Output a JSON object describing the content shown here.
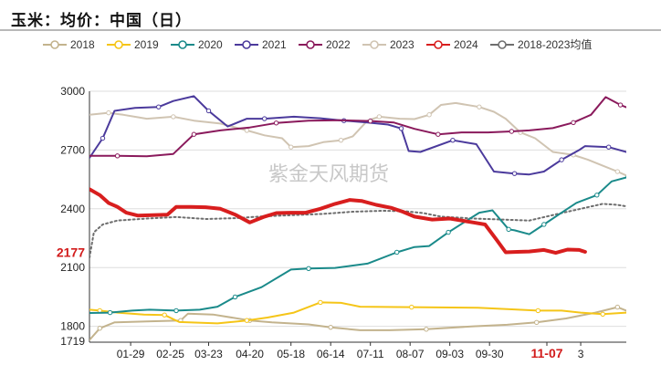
{
  "chart_data": {
    "type": "line",
    "title": "玉米：均价：中国（日）",
    "watermark": "紫金天风期货",
    "ylim": [
      1719,
      3000
    ],
    "yticks": [
      1800,
      2100,
      2400,
      2700,
      3000
    ],
    "ymin_label": "1719",
    "callout_left": "2177",
    "callout_bottom": "11-07",
    "x_tick_labels": [
      "01-29",
      "02-25",
      "03-23",
      "04-20",
      "05-18",
      "06-14",
      "07-11",
      "08-07",
      "09-03",
      "09-30",
      "11-07",
      "3"
    ],
    "x_tick_pos": [
      29,
      56,
      82,
      110,
      138,
      165,
      192,
      219,
      246,
      273,
      312,
      335
    ],
    "xlim": [
      1,
      366
    ],
    "series": [
      {
        "name": "2018",
        "color": "#c3b38d",
        "width": 2,
        "dash": false,
        "points": [
          [
            1,
            1730
          ],
          [
            8,
            1790
          ],
          [
            18,
            1820
          ],
          [
            40,
            1825
          ],
          [
            63,
            1830
          ],
          [
            68,
            1865
          ],
          [
            85,
            1860
          ],
          [
            110,
            1830
          ],
          [
            125,
            1820
          ],
          [
            150,
            1810
          ],
          [
            165,
            1795
          ],
          [
            185,
            1780
          ],
          [
            205,
            1780
          ],
          [
            230,
            1785
          ],
          [
            262,
            1800
          ],
          [
            285,
            1808
          ],
          [
            305,
            1820
          ],
          [
            325,
            1840
          ],
          [
            345,
            1870
          ],
          [
            360,
            1898
          ],
          [
            366,
            1880
          ]
        ]
      },
      {
        "name": "2019",
        "color": "#f5c518",
        "width": 2,
        "dash": false,
        "points": [
          [
            1,
            1885
          ],
          [
            8,
            1880
          ],
          [
            20,
            1870
          ],
          [
            38,
            1860
          ],
          [
            52,
            1858
          ],
          [
            62,
            1822
          ],
          [
            88,
            1815
          ],
          [
            108,
            1830
          ],
          [
            122,
            1845
          ],
          [
            140,
            1870
          ],
          [
            158,
            1922
          ],
          [
            172,
            1920
          ],
          [
            185,
            1900
          ],
          [
            220,
            1898
          ],
          [
            265,
            1895
          ],
          [
            285,
            1888
          ],
          [
            306,
            1880
          ],
          [
            322,
            1880
          ],
          [
            335,
            1870
          ],
          [
            350,
            1862
          ],
          [
            366,
            1870
          ]
        ]
      },
      {
        "name": "2020",
        "color": "#1a8a8a",
        "width": 2,
        "dash": false,
        "points": [
          [
            1,
            1868
          ],
          [
            15,
            1870
          ],
          [
            30,
            1880
          ],
          [
            42,
            1885
          ],
          [
            60,
            1880
          ],
          [
            76,
            1885
          ],
          [
            88,
            1900
          ],
          [
            100,
            1950
          ],
          [
            118,
            2000
          ],
          [
            138,
            2090
          ],
          [
            150,
            2095
          ],
          [
            168,
            2098
          ],
          [
            190,
            2120
          ],
          [
            210,
            2178
          ],
          [
            222,
            2205
          ],
          [
            232,
            2210
          ],
          [
            245,
            2280
          ],
          [
            266,
            2380
          ],
          [
            275,
            2392
          ],
          [
            286,
            2295
          ],
          [
            290,
            2290
          ],
          [
            300,
            2270
          ],
          [
            310,
            2320
          ],
          [
            320,
            2370
          ],
          [
            332,
            2430
          ],
          [
            346,
            2470
          ],
          [
            356,
            2540
          ],
          [
            366,
            2560
          ],
          [
            370,
            2620
          ]
        ]
      },
      {
        "name": "2021",
        "color": "#4b3a9c",
        "width": 2,
        "dash": false,
        "points": [
          [
            1,
            2660
          ],
          [
            10,
            2760
          ],
          [
            18,
            2900
          ],
          [
            32,
            2915
          ],
          [
            48,
            2920
          ],
          [
            58,
            2950
          ],
          [
            72,
            2975
          ],
          [
            82,
            2900
          ],
          [
            95,
            2820
          ],
          [
            108,
            2860
          ],
          [
            120,
            2860
          ],
          [
            140,
            2870
          ],
          [
            158,
            2862
          ],
          [
            174,
            2850
          ],
          [
            190,
            2840
          ],
          [
            204,
            2830
          ],
          [
            213,
            2810
          ],
          [
            218,
            2695
          ],
          [
            226,
            2690
          ],
          [
            248,
            2750
          ],
          [
            264,
            2730
          ],
          [
            276,
            2590
          ],
          [
            290,
            2580
          ],
          [
            300,
            2575
          ],
          [
            310,
            2590
          ],
          [
            322,
            2650
          ],
          [
            334,
            2700
          ],
          [
            338,
            2720
          ],
          [
            354,
            2715
          ],
          [
            366,
            2690
          ],
          [
            372,
            2675
          ]
        ]
      },
      {
        "name": "2022",
        "color": "#8a1a5c",
        "width": 2,
        "dash": false,
        "points": [
          [
            1,
            2670
          ],
          [
            20,
            2670
          ],
          [
            40,
            2668
          ],
          [
            58,
            2680
          ],
          [
            72,
            2780
          ],
          [
            90,
            2800
          ],
          [
            110,
            2815
          ],
          [
            128,
            2838
          ],
          [
            150,
            2850
          ],
          [
            172,
            2852
          ],
          [
            192,
            2848
          ],
          [
            208,
            2840
          ],
          [
            222,
            2808
          ],
          [
            238,
            2780
          ],
          [
            254,
            2790
          ],
          [
            272,
            2790
          ],
          [
            288,
            2795
          ],
          [
            300,
            2800
          ],
          [
            316,
            2812
          ],
          [
            330,
            2840
          ],
          [
            342,
            2880
          ],
          [
            352,
            2970
          ],
          [
            362,
            2930
          ],
          [
            372,
            2900
          ],
          [
            380,
            2880
          ]
        ]
      },
      {
        "name": "2023",
        "color": "#d0c4b2",
        "width": 2,
        "dash": false,
        "points": [
          [
            1,
            2880
          ],
          [
            14,
            2890
          ],
          [
            24,
            2880
          ],
          [
            40,
            2860
          ],
          [
            58,
            2870
          ],
          [
            72,
            2850
          ],
          [
            90,
            2835
          ],
          [
            108,
            2800
          ],
          [
            120,
            2775
          ],
          [
            132,
            2760
          ],
          [
            138,
            2715
          ],
          [
            150,
            2720
          ],
          [
            160,
            2740
          ],
          [
            172,
            2750
          ],
          [
            180,
            2770
          ],
          [
            190,
            2850
          ],
          [
            198,
            2870
          ],
          [
            212,
            2860
          ],
          [
            222,
            2858
          ],
          [
            232,
            2880
          ],
          [
            240,
            2930
          ],
          [
            250,
            2940
          ],
          [
            266,
            2920
          ],
          [
            276,
            2895
          ],
          [
            284,
            2860
          ],
          [
            294,
            2790
          ],
          [
            304,
            2760
          ],
          [
            316,
            2690
          ],
          [
            330,
            2675
          ],
          [
            340,
            2650
          ],
          [
            350,
            2620
          ],
          [
            360,
            2590
          ],
          [
            366,
            2570
          ],
          [
            370,
            2520
          ],
          [
            378,
            2508
          ]
        ]
      },
      {
        "name": "2024",
        "color": "#d81e1e",
        "width": 4,
        "dash": false,
        "points": [
          [
            1,
            2500
          ],
          [
            8,
            2470
          ],
          [
            14,
            2430
          ],
          [
            20,
            2410
          ],
          [
            26,
            2380
          ],
          [
            34,
            2365
          ],
          [
            44,
            2368
          ],
          [
            54,
            2370
          ],
          [
            60,
            2410
          ],
          [
            70,
            2410
          ],
          [
            80,
            2408
          ],
          [
            90,
            2400
          ],
          [
            100,
            2370
          ],
          [
            110,
            2330
          ],
          [
            120,
            2360
          ],
          [
            128,
            2378
          ],
          [
            138,
            2380
          ],
          [
            148,
            2380
          ],
          [
            158,
            2400
          ],
          [
            168,
            2425
          ],
          [
            178,
            2445
          ],
          [
            186,
            2440
          ],
          [
            196,
            2420
          ],
          [
            206,
            2405
          ],
          [
            214,
            2385
          ],
          [
            222,
            2360
          ],
          [
            234,
            2345
          ],
          [
            246,
            2350
          ],
          [
            262,
            2330
          ],
          [
            270,
            2320
          ],
          [
            278,
            2240
          ],
          [
            284,
            2178
          ],
          [
            292,
            2180
          ],
          [
            300,
            2182
          ],
          [
            310,
            2190
          ],
          [
            318,
            2175
          ],
          [
            326,
            2192
          ],
          [
            334,
            2190
          ],
          [
            338,
            2180
          ]
        ]
      },
      {
        "name": "2018-2023均值",
        "color": "#6e6e6e",
        "width": 2,
        "dash": true,
        "points": [
          [
            1,
            2150
          ],
          [
            4,
            2280
          ],
          [
            10,
            2320
          ],
          [
            20,
            2340
          ],
          [
            40,
            2350
          ],
          [
            60,
            2358
          ],
          [
            80,
            2348
          ],
          [
            100,
            2352
          ],
          [
            120,
            2362
          ],
          [
            140,
            2368
          ],
          [
            160,
            2374
          ],
          [
            180,
            2385
          ],
          [
            200,
            2390
          ],
          [
            215,
            2388
          ],
          [
            228,
            2378
          ],
          [
            240,
            2360
          ],
          [
            262,
            2350
          ],
          [
            282,
            2345
          ],
          [
            300,
            2340
          ],
          [
            320,
            2375
          ],
          [
            335,
            2400
          ],
          [
            350,
            2425
          ],
          [
            360,
            2420
          ],
          [
            372,
            2405
          ],
          [
            380,
            2400
          ]
        ]
      }
    ]
  }
}
